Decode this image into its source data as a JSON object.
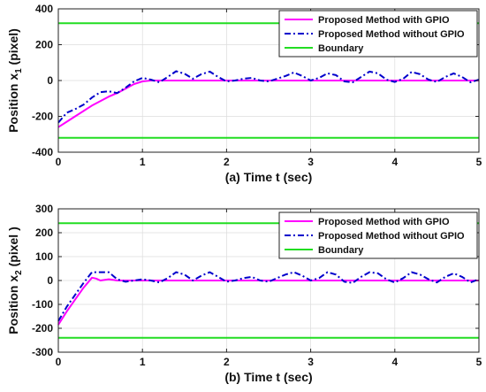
{
  "chart_data": [
    {
      "type": "line",
      "xlabel": "(a) Time t (sec)",
      "ylabel": "Position x",
      "ylabel_sub": "1",
      "ylabel_unit": "(pixel)",
      "xlim": [
        0,
        5
      ],
      "ylim": [
        -400,
        400
      ],
      "xticks": [
        0,
        1,
        2,
        3,
        4,
        5
      ],
      "yticks": [
        -400,
        -200,
        0,
        200,
        400
      ],
      "grid": true,
      "legend_position": "top-right",
      "series": [
        {
          "name": "Proposed Method with GPIO",
          "color": "#ff00ff",
          "style": "solid",
          "x": [
            0,
            0.1,
            0.2,
            0.3,
            0.4,
            0.5,
            0.6,
            0.7,
            0.8,
            0.9,
            1.0,
            1.1,
            1.2,
            1.5,
            2,
            2.5,
            3,
            3.5,
            4,
            4.5,
            5
          ],
          "y": [
            -260,
            -230,
            -200,
            -170,
            -140,
            -115,
            -90,
            -70,
            -45,
            -20,
            -5,
            0,
            0,
            0,
            0,
            0,
            0,
            0,
            0,
            0,
            0
          ]
        },
        {
          "name": "Proposed Method without GPIO",
          "color": "#0000cc",
          "style": "dashdot",
          "x": [
            0,
            0.1,
            0.2,
            0.3,
            0.4,
            0.5,
            0.6,
            0.7,
            0.8,
            0.9,
            1.0,
            1.1,
            1.2,
            1.3,
            1.4,
            1.5,
            1.6,
            1.7,
            1.8,
            1.9,
            2.0,
            2.1,
            2.2,
            2.3,
            2.4,
            2.5,
            2.6,
            2.7,
            2.8,
            2.9,
            3.0,
            3.1,
            3.2,
            3.3,
            3.4,
            3.5,
            3.6,
            3.7,
            3.8,
            3.9,
            4.0,
            4.1,
            4.2,
            4.3,
            4.4,
            4.5,
            4.6,
            4.7,
            4.8,
            4.9,
            5.0
          ],
          "y": [
            -235,
            -180,
            -160,
            -135,
            -95,
            -65,
            -60,
            -70,
            -40,
            -5,
            15,
            5,
            -10,
            20,
            52,
            38,
            10,
            35,
            50,
            20,
            -5,
            0,
            10,
            15,
            0,
            -5,
            10,
            25,
            45,
            25,
            0,
            15,
            40,
            30,
            -5,
            -10,
            20,
            50,
            40,
            5,
            -8,
            10,
            48,
            35,
            5,
            -8,
            20,
            40,
            20,
            -10,
            5
          ]
        },
        {
          "name": "Boundary",
          "color": "#22dd22",
          "style": "solid",
          "x": [
            0,
            5
          ],
          "y": [
            320,
            320
          ]
        },
        {
          "name": "",
          "color": "#22dd22",
          "style": "solid",
          "x": [
            0,
            5
          ],
          "y": [
            -320,
            -320
          ]
        }
      ]
    },
    {
      "type": "line",
      "xlabel": "(b) Time t (sec)",
      "ylabel": "Position x",
      "ylabel_sub": "2",
      "ylabel_unit": "(pixel )",
      "xlim": [
        0,
        5
      ],
      "ylim": [
        -300,
        300
      ],
      "xticks": [
        0,
        1,
        2,
        3,
        4,
        5
      ],
      "yticks": [
        -300,
        -200,
        -100,
        0,
        100,
        200,
        300
      ],
      "grid": true,
      "legend_position": "top-right",
      "series": [
        {
          "name": "Proposed Method with GPIO",
          "color": "#ff00ff",
          "style": "solid",
          "x": [
            0,
            0.1,
            0.2,
            0.3,
            0.4,
            0.45,
            0.5,
            0.6,
            0.7,
            0.8,
            1.0,
            1.5,
            2,
            2.5,
            3,
            3.5,
            4,
            4.5,
            5
          ],
          "y": [
            -185,
            -130,
            -80,
            -30,
            12,
            8,
            0,
            5,
            0,
            0,
            0,
            0,
            0,
            0,
            0,
            0,
            0,
            0,
            0
          ]
        },
        {
          "name": "Proposed Method without GPIO",
          "color": "#0000cc",
          "style": "dashdot",
          "x": [
            0,
            0.1,
            0.2,
            0.3,
            0.4,
            0.5,
            0.6,
            0.7,
            0.8,
            0.9,
            1.0,
            1.1,
            1.2,
            1.3,
            1.4,
            1.5,
            1.6,
            1.7,
            1.8,
            1.9,
            2.0,
            2.1,
            2.2,
            2.3,
            2.4,
            2.5,
            2.6,
            2.7,
            2.8,
            2.9,
            3.0,
            3.1,
            3.2,
            3.3,
            3.4,
            3.5,
            3.6,
            3.7,
            3.8,
            3.9,
            4.0,
            4.1,
            4.2,
            4.3,
            4.4,
            4.5,
            4.6,
            4.7,
            4.8,
            4.9,
            5.0
          ],
          "y": [
            -170,
            -110,
            -60,
            -10,
            35,
            35,
            35,
            5,
            -5,
            0,
            5,
            0,
            -8,
            10,
            35,
            25,
            0,
            20,
            35,
            15,
            -5,
            0,
            10,
            15,
            0,
            -5,
            10,
            25,
            35,
            20,
            0,
            10,
            35,
            25,
            -5,
            -10,
            15,
            35,
            30,
            5,
            -8,
            10,
            35,
            25,
            5,
            -8,
            15,
            30,
            15,
            -8,
            5
          ]
        },
        {
          "name": "Boundary",
          "color": "#22dd22",
          "style": "solid",
          "x": [
            0,
            5
          ],
          "y": [
            240,
            240
          ]
        },
        {
          "name": "",
          "color": "#22dd22",
          "style": "solid",
          "x": [
            0,
            5
          ],
          "y": [
            -240,
            -240
          ]
        }
      ]
    }
  ]
}
